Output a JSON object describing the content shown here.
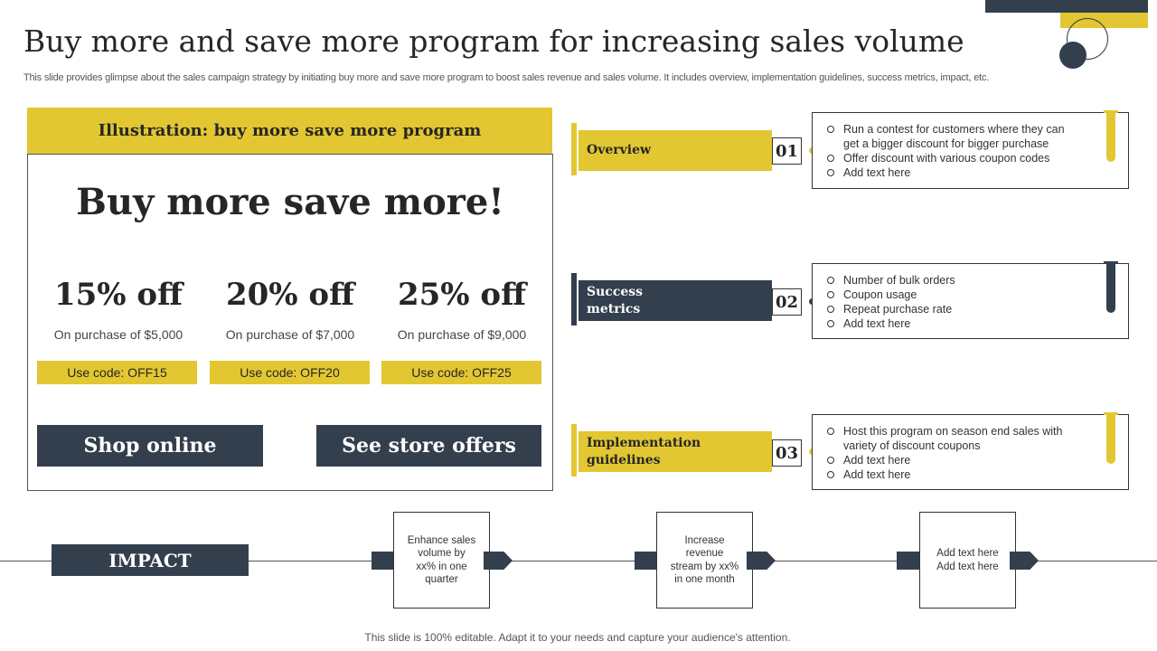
{
  "title": "Buy more and save more program for increasing sales volume",
  "subtitle": "This slide provides glimpse about the sales campaign strategy by initiating buy more and save more program to boost sales revenue and sales volume. It includes overview, implementation guidelines, success metrics, impact, etc.",
  "illustration": {
    "header": "Illustration: buy more save more program",
    "headline": "Buy more save more!",
    "offers": [
      {
        "percent": "15% off",
        "condition": "On purchase of $5,000",
        "code": "Use code: OFF15"
      },
      {
        "percent": "20% off",
        "condition": "On purchase of $7,000",
        "code": "Use code: OFF20"
      },
      {
        "percent": "25% off",
        "condition": "On purchase of $9,000",
        "code": "Use code: OFF25"
      }
    ],
    "shop_online": "Shop online",
    "store_offers": "See store offers"
  },
  "stages": [
    {
      "label": "Overview",
      "number": "01",
      "bullets": [
        "Run a contest for customers where they can get a bigger discount for bigger purchase",
        "Offer discount with various  coupon codes",
        "Add text here"
      ]
    },
    {
      "label": "Success metrics",
      "number": "02",
      "bullets": [
        "Number of bulk orders",
        "Coupon usage",
        "Repeat purchase rate",
        "Add text here"
      ]
    },
    {
      "label": "Implementation guidelines",
      "number": "03",
      "bullets": [
        "Host this program on season end sales with variety of discount coupons",
        "Add text here",
        "Add text here"
      ]
    }
  ],
  "impact": {
    "label": "IMPACT",
    "boxes": [
      "Enhance sales volume by xx% in one quarter",
      "Increase revenue stream by xx% in one month",
      "Add text here Add text here"
    ]
  },
  "footer": "This slide is 100% editable. Adapt it to your needs and capture your audience's attention.",
  "colors": {
    "accent": "#e2c732",
    "dark": "#333f4d"
  }
}
